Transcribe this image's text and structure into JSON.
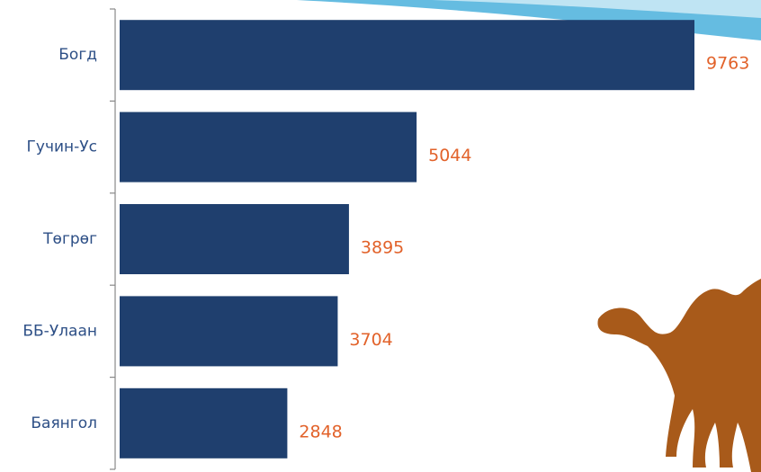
{
  "chart_data": {
    "type": "barh",
    "categories": [
      "Богд",
      "Гучин-Ус",
      "Төгрөг",
      "ББ-Улаан",
      "Баянгол"
    ],
    "values": [
      9763,
      5044,
      3895,
      3704,
      2848
    ],
    "color": "#1f3f6e"
  }
}
